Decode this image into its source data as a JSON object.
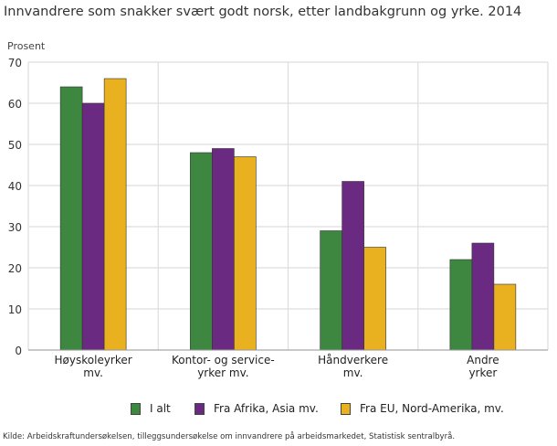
{
  "chart_data": {
    "type": "bar",
    "title": "Innvandrere som snakker svært godt norsk, etter landbakgrunn og yrke. 2014",
    "ylabel": "Prosent",
    "xlabel": "",
    "ylim": [
      0,
      70
    ],
    "yticks": [
      0,
      10,
      20,
      30,
      40,
      50,
      60,
      70
    ],
    "grid": true,
    "legend": "bottom",
    "categories": [
      [
        "Høyskoleyrker",
        "mv."
      ],
      [
        "Kontor- og service-",
        "yrker mv."
      ],
      [
        "Håndverkere",
        "mv."
      ],
      [
        "Andre",
        "yrker"
      ]
    ],
    "series": [
      {
        "name": "I alt",
        "color": "#3d8741",
        "values": [
          64,
          48,
          29,
          22
        ]
      },
      {
        "name": "Fra Afrika, Asia mv.",
        "color": "#6a2a82",
        "values": [
          60,
          49,
          41,
          26
        ]
      },
      {
        "name": "Fra EU, Nord-Amerika, mv.",
        "color": "#e9b11f",
        "values": [
          66,
          47,
          25,
          16
        ]
      }
    ],
    "source": "Kilde: Arbeidskraftundersøkelsen, tilleggsundersøkelse om innvandrere på arbeidsmarkedet, Statistisk sentralbyrå."
  }
}
